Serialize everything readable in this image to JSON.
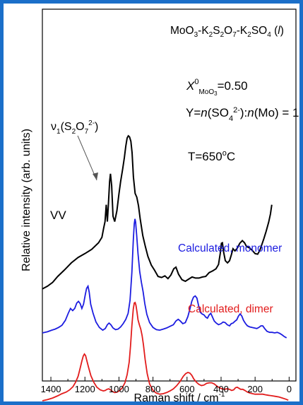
{
  "chart_data": {
    "type": "line",
    "title": "MoO3-K2S2O7-K2SO4 (l)",
    "xlabel": "Raman shift / cm-1",
    "ylabel": "Relative intensity (arb. units)",
    "xlim": [
      1450,
      -40
    ],
    "x_reversed": true,
    "xticks": [
      1400,
      1200,
      1000,
      800,
      600,
      400,
      200,
      0
    ],
    "y_ticks": "none",
    "annotations": {
      "composition": "X0MoO3=0.50",
      "ratio": "Y=n(SO42-):n(Mo) = 1",
      "temperature": "T=650oC",
      "peak_label": "ν1(S2O72-)",
      "vv": "VV"
    },
    "series": [
      {
        "name": "VV",
        "color": "#000000",
        "points": [
          [
            1450,
            0.222
          ],
          [
            1420,
            0.232
          ],
          [
            1390,
            0.246
          ],
          [
            1360,
            0.268
          ],
          [
            1320,
            0.292
          ],
          [
            1280,
            0.318
          ],
          [
            1240,
            0.338
          ],
          [
            1200,
            0.352
          ],
          [
            1160,
            0.368
          ],
          [
            1120,
            0.392
          ],
          [
            1100,
            0.412
          ],
          [
            1090,
            0.445
          ],
          [
            1082,
            0.47
          ],
          [
            1075,
            0.532
          ],
          [
            1068,
            0.47
          ],
          [
            1062,
            0.535
          ],
          [
            1055,
            0.618
          ],
          [
            1050,
            0.646
          ],
          [
            1043,
            0.602
          ],
          [
            1035,
            0.49
          ],
          [
            1025,
            0.47
          ],
          [
            1012,
            0.51
          ],
          [
            1000,
            0.572
          ],
          [
            990,
            0.618
          ],
          [
            978,
            0.664
          ],
          [
            968,
            0.706
          ],
          [
            960,
            0.748
          ],
          [
            952,
            0.778
          ],
          [
            945,
            0.786
          ],
          [
            938,
            0.782
          ],
          [
            930,
            0.766
          ],
          [
            923,
            0.724
          ],
          [
            915,
            0.634
          ],
          [
            905,
            0.574
          ],
          [
            895,
            0.56
          ],
          [
            885,
            0.528
          ],
          [
            875,
            0.48
          ],
          [
            860,
            0.418
          ],
          [
            845,
            0.378
          ],
          [
            830,
            0.342
          ],
          [
            810,
            0.31
          ],
          [
            790,
            0.29
          ],
          [
            770,
            0.268
          ],
          [
            750,
            0.264
          ],
          [
            730,
            0.27
          ],
          [
            712,
            0.26
          ],
          [
            695,
            0.273
          ],
          [
            678,
            0.296
          ],
          [
            665,
            0.302
          ],
          [
            650,
            0.276
          ],
          [
            630,
            0.256
          ],
          [
            610,
            0.25
          ],
          [
            590,
            0.258
          ],
          [
            570,
            0.266
          ],
          [
            550,
            0.262
          ],
          [
            530,
            0.262
          ],
          [
            510,
            0.266
          ],
          [
            490,
            0.268
          ],
          [
            470,
            0.282
          ],
          [
            450,
            0.288
          ],
          [
            430,
            0.296
          ],
          [
            415,
            0.312
          ],
          [
            405,
            0.352
          ],
          [
            398,
            0.39
          ],
          [
            392,
            0.392
          ],
          [
            385,
            0.358
          ],
          [
            375,
            0.326
          ],
          [
            362,
            0.318
          ],
          [
            350,
            0.326
          ],
          [
            340,
            0.346
          ],
          [
            330,
            0.37
          ],
          [
            318,
            0.362
          ],
          [
            305,
            0.372
          ],
          [
            290,
            0.39
          ],
          [
            275,
            0.4
          ],
          [
            262,
            0.392
          ],
          [
            250,
            0.378
          ],
          [
            235,
            0.374
          ],
          [
            220,
            0.366
          ],
          [
            200,
            0.352
          ],
          [
            185,
            0.35
          ],
          [
            172,
            0.364
          ],
          [
            160,
            0.386
          ],
          [
            148,
            0.408
          ],
          [
            135,
            0.434
          ],
          [
            120,
            0.468
          ],
          [
            110,
            0.498
          ],
          [
            102,
            0.532
          ]
        ]
      },
      {
        "name": "Calculated, monomer",
        "color": "#1c1ce0",
        "points": [
          [
            1450,
            0.06
          ],
          [
            1420,
            0.064
          ],
          [
            1395,
            0.07
          ],
          [
            1375,
            0.074
          ],
          [
            1355,
            0.08
          ],
          [
            1335,
            0.088
          ],
          [
            1315,
            0.106
          ],
          [
            1298,
            0.132
          ],
          [
            1285,
            0.15
          ],
          [
            1272,
            0.142
          ],
          [
            1260,
            0.15
          ],
          [
            1248,
            0.17
          ],
          [
            1238,
            0.176
          ],
          [
            1228,
            0.168
          ],
          [
            1218,
            0.15
          ],
          [
            1208,
            0.166
          ],
          [
            1198,
            0.2
          ],
          [
            1190,
            0.224
          ],
          [
            1182,
            0.232
          ],
          [
            1175,
            0.21
          ],
          [
            1166,
            0.166
          ],
          [
            1152,
            0.132
          ],
          [
            1135,
            0.1
          ],
          [
            1115,
            0.08
          ],
          [
            1095,
            0.07
          ],
          [
            1080,
            0.076
          ],
          [
            1068,
            0.09
          ],
          [
            1058,
            0.096
          ],
          [
            1048,
            0.09
          ],
          [
            1035,
            0.078
          ],
          [
            1020,
            0.072
          ],
          [
            1005,
            0.074
          ],
          [
            990,
            0.082
          ],
          [
            975,
            0.094
          ],
          [
            960,
            0.11
          ],
          [
            946,
            0.132
          ],
          [
            935,
            0.18
          ],
          [
            924,
            0.282
          ],
          [
            916,
            0.4
          ],
          [
            910,
            0.462
          ],
          [
            906,
            0.48
          ],
          [
            902,
            0.468
          ],
          [
            896,
            0.42
          ],
          [
            888,
            0.352
          ],
          [
            878,
            0.286
          ],
          [
            868,
            0.246
          ],
          [
            858,
            0.212
          ],
          [
            848,
            0.168
          ],
          [
            836,
            0.128
          ],
          [
            820,
            0.098
          ],
          [
            800,
            0.08
          ],
          [
            780,
            0.072
          ],
          [
            760,
            0.07
          ],
          [
            740,
            0.074
          ],
          [
            720,
            0.078
          ],
          [
            700,
            0.084
          ],
          [
            680,
            0.09
          ],
          [
            665,
            0.104
          ],
          [
            652,
            0.11
          ],
          [
            640,
            0.104
          ],
          [
            625,
            0.094
          ],
          [
            610,
            0.098
          ],
          [
            595,
            0.12
          ],
          [
            582,
            0.15
          ],
          [
            572,
            0.176
          ],
          [
            562,
            0.192
          ],
          [
            552,
            0.196
          ],
          [
            542,
            0.188
          ],
          [
            532,
            0.16
          ],
          [
            522,
            0.136
          ],
          [
            512,
            0.13
          ],
          [
            500,
            0.126
          ],
          [
            490,
            0.118
          ],
          [
            480,
            0.114
          ],
          [
            470,
            0.126
          ],
          [
            460,
            0.132
          ],
          [
            450,
            0.118
          ],
          [
            440,
            0.104
          ],
          [
            428,
            0.096
          ],
          [
            415,
            0.09
          ],
          [
            400,
            0.094
          ],
          [
            388,
            0.1
          ],
          [
            376,
            0.098
          ],
          [
            364,
            0.09
          ],
          [
            350,
            0.086
          ],
          [
            340,
            0.094
          ],
          [
            330,
            0.096
          ],
          [
            320,
            0.102
          ],
          [
            308,
            0.108
          ],
          [
            298,
            0.122
          ],
          [
            288,
            0.13
          ],
          [
            278,
            0.122
          ],
          [
            268,
            0.106
          ],
          [
            256,
            0.094
          ],
          [
            245,
            0.086
          ],
          [
            232,
            0.082
          ],
          [
            218,
            0.08
          ],
          [
            205,
            0.078
          ],
          [
            190,
            0.076
          ],
          [
            178,
            0.08
          ],
          [
            166,
            0.086
          ],
          [
            155,
            0.086
          ],
          [
            144,
            0.076
          ],
          [
            130,
            0.066
          ],
          [
            115,
            0.062
          ],
          [
            100,
            0.062
          ],
          [
            85,
            0.06
          ],
          [
            70,
            0.062
          ],
          [
            55,
            0.058
          ],
          [
            40,
            0.052
          ],
          [
            28,
            0.046
          ],
          [
            15,
            0.042
          ]
        ]
      },
      {
        "name": "Calculated, dimer",
        "color": "#e21c1c",
        "points": [
          [
            1450,
            -0.19
          ],
          [
            1420,
            -0.186
          ],
          [
            1390,
            -0.18
          ],
          [
            1360,
            -0.172
          ],
          [
            1335,
            -0.164
          ],
          [
            1310,
            -0.158
          ],
          [
            1290,
            -0.15
          ],
          [
            1270,
            -0.138
          ],
          [
            1255,
            -0.122
          ],
          [
            1240,
            -0.1
          ],
          [
            1228,
            -0.07
          ],
          [
            1218,
            -0.044
          ],
          [
            1210,
            -0.026
          ],
          [
            1203,
            -0.018
          ],
          [
            1196,
            -0.024
          ],
          [
            1188,
            -0.044
          ],
          [
            1178,
            -0.068
          ],
          [
            1165,
            -0.098
          ],
          [
            1148,
            -0.122
          ],
          [
            1130,
            -0.14
          ],
          [
            1110,
            -0.15
          ],
          [
            1092,
            -0.154
          ],
          [
            1080,
            -0.152
          ],
          [
            1070,
            -0.148
          ],
          [
            1060,
            -0.146
          ],
          [
            1050,
            -0.15
          ],
          [
            1038,
            -0.156
          ],
          [
            1025,
            -0.16
          ],
          [
            1010,
            -0.158
          ],
          [
            995,
            -0.152
          ],
          [
            980,
            -0.142
          ],
          [
            965,
            -0.124
          ],
          [
            952,
            -0.094
          ],
          [
            940,
            -0.048
          ],
          [
            932,
            0.012
          ],
          [
            924,
            0.086
          ],
          [
            916,
            0.148
          ],
          [
            910,
            0.17
          ],
          [
            905,
            0.172
          ],
          [
            900,
            0.162
          ],
          [
            894,
            0.136
          ],
          [
            888,
            0.108
          ],
          [
            880,
            0.09
          ],
          [
            872,
            0.074
          ],
          [
            864,
            0.05
          ],
          [
            856,
            0.016
          ],
          [
            846,
            -0.038
          ],
          [
            834,
            -0.09
          ],
          [
            820,
            -0.128
          ],
          [
            800,
            -0.152
          ],
          [
            780,
            -0.162
          ],
          [
            760,
            -0.166
          ],
          [
            740,
            -0.164
          ],
          [
            720,
            -0.16
          ],
          [
            700,
            -0.154
          ],
          [
            680,
            -0.146
          ],
          [
            660,
            -0.134
          ],
          [
            640,
            -0.118
          ],
          [
            622,
            -0.1
          ],
          [
            608,
            -0.09
          ],
          [
            595,
            -0.086
          ],
          [
            584,
            -0.088
          ],
          [
            572,
            -0.096
          ],
          [
            560,
            -0.11
          ],
          [
            545,
            -0.122
          ],
          [
            530,
            -0.13
          ],
          [
            515,
            -0.134
          ],
          [
            500,
            -0.132
          ],
          [
            485,
            -0.126
          ],
          [
            470,
            -0.124
          ],
          [
            455,
            -0.124
          ],
          [
            440,
            -0.128
          ],
          [
            425,
            -0.136
          ],
          [
            410,
            -0.142
          ],
          [
            395,
            -0.146
          ],
          [
            380,
            -0.148
          ],
          [
            365,
            -0.146
          ],
          [
            350,
            -0.148
          ],
          [
            338,
            -0.152
          ],
          [
            326,
            -0.15
          ],
          [
            315,
            -0.142
          ],
          [
            305,
            -0.14
          ],
          [
            295,
            -0.144
          ],
          [
            285,
            -0.148
          ],
          [
            272,
            -0.148
          ],
          [
            260,
            -0.152
          ],
          [
            245,
            -0.158
          ],
          [
            230,
            -0.162
          ],
          [
            215,
            -0.164
          ],
          [
            200,
            -0.166
          ],
          [
            185,
            -0.166
          ],
          [
            170,
            -0.166
          ],
          [
            155,
            -0.166
          ],
          [
            140,
            -0.168
          ],
          [
            120,
            -0.17
          ],
          [
            100,
            -0.172
          ],
          [
            80,
            -0.174
          ],
          [
            60,
            -0.176
          ],
          [
            40,
            -0.18
          ],
          [
            20,
            -0.184
          ],
          [
            5,
            -0.188
          ]
        ]
      }
    ],
    "labels": {
      "monomer": "Calculated, monomer",
      "dimer": "Calculated, dimer"
    }
  }
}
